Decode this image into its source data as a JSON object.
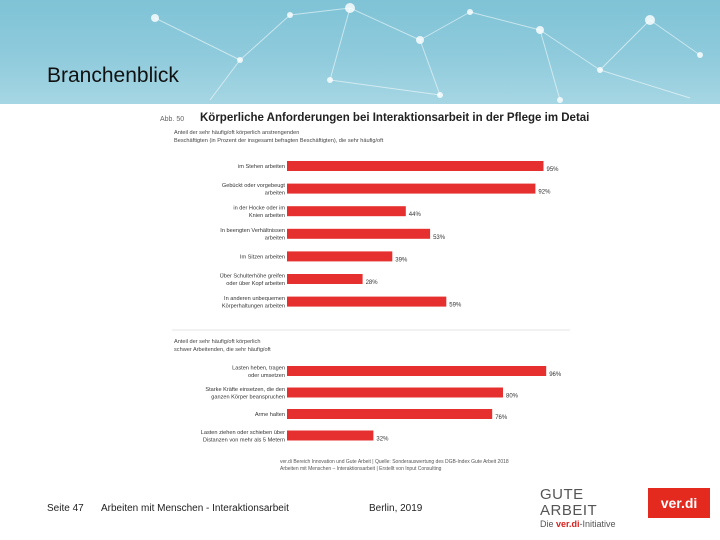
{
  "slide": {
    "title": "Branchenblick"
  },
  "chart_data": {
    "type": "bar",
    "figure_label": "Abb. 50",
    "title": "Körperliche Anforderungen bei Interaktionsarbeit in der Pflege im Detail",
    "xlim": [
      0,
      100
    ],
    "grid": false,
    "legend": "none",
    "color": "#e5302f",
    "groups": [
      {
        "caption": [
          "Anteil der sehr häufig/oft körperlich anstrengenden",
          "Beschäftigten (in Prozent der insgesamt befragten Beschäftigten), die sehr häufig/oft"
        ],
        "categories": [
          [
            "im Stehen arbeiten"
          ],
          [
            "Gebückt oder vorgebeugt",
            "arbeiten"
          ],
          [
            "in der Hocke oder im",
            "Knien arbeiten"
          ],
          [
            "In beengten Verhältnissen",
            "arbeiten"
          ],
          [
            "Im Sitzen arbeiten"
          ],
          [
            "Über Schulterhöhe greifen",
            "oder über Kopf arbeiten"
          ],
          [
            "In anderen unbequemen",
            "Körperhaltungen arbeiten"
          ]
        ],
        "values": [
          95,
          92,
          44,
          53,
          39,
          28,
          59
        ],
        "value_labels": [
          "95%",
          "92%",
          "44%",
          "53%",
          "39%",
          "28%",
          "59%"
        ]
      },
      {
        "caption": [
          "Anteil der sehr häufig/oft körperlich",
          "schwer Arbeitenden, die sehr häufig/oft"
        ],
        "categories": [
          [
            "Lasten heben, tragen",
            "oder umsetzen"
          ],
          [
            "Starke Kräfte einsetzen, die den",
            "ganzen Körper beanspruchen"
          ],
          [
            "Arme halten"
          ],
          [
            "Lasten ziehen oder schieben über",
            "Distanzen von mehr als 5 Metern"
          ]
        ],
        "values": [
          96,
          80,
          76,
          32
        ],
        "value_labels": [
          "96%",
          "80%",
          "76%",
          "32%"
        ]
      }
    ],
    "source": [
      "ver.di Bereich Innovation und Gute Arbeit | Quelle: Sonderauswertung des DGB-Index Gute Arbeit 2018",
      "Arbeiten mit Menschen – Interaktionsarbeit | Erstellt von Input Consulting"
    ]
  },
  "footer": {
    "page": "Seite 47",
    "topic": "Arbeiten mit Menschen - Interaktionsarbeit",
    "place_year": "Berlin, 2019"
  },
  "logos": {
    "gute_arbeit_line1": "GUTE ARBEIT",
    "gute_arbeit_line2_pre": "Die ",
    "gute_arbeit_line2_brand": "ver.di",
    "gute_arbeit_line2_post": "-Initiative",
    "verdi": "ver.di",
    "brand_red": "#e4291f"
  }
}
